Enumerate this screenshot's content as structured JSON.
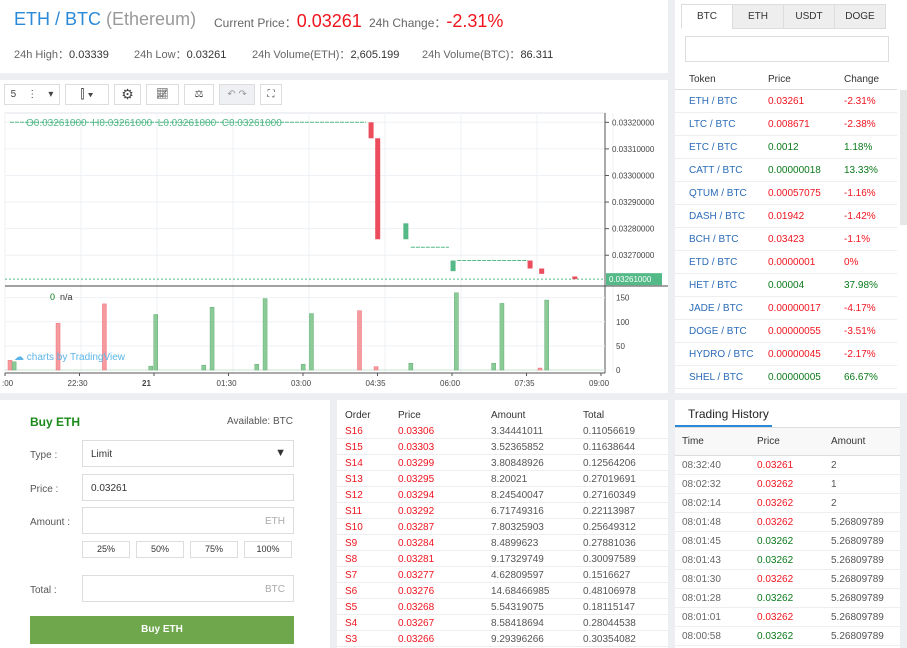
{
  "header": {
    "base": "ETH",
    "sep": " / ",
    "quote": "BTC",
    "full_name": "(Ethereum)",
    "current_price_label": "Current Price：",
    "current_price": "0.03261",
    "change_label": "24h Change：",
    "change": "-2.31%",
    "stats": [
      {
        "label": "24h High：",
        "value": "0.03339"
      },
      {
        "label": "24h Low：",
        "value": "0.03261"
      },
      {
        "label": "24h Volume(ETH)：",
        "value": "2,605.199"
      },
      {
        "label": "24h Volume(BTC)：",
        "value": "86.311"
      }
    ]
  },
  "chart": {
    "interval": "5",
    "ohlc_legend": "O0.03261000  H0.03261000  L0.03261000  C0.03261000",
    "volume_legend_value": "0",
    "volume_legend_label": "n/a",
    "watermark": "charts by TradingView",
    "price_ticks": [
      "0.03320000",
      "0.03310000",
      "0.03300000",
      "0.03290000",
      "0.03280000",
      "0.03270000"
    ],
    "current_price_tag": "0.03261000",
    "volume_ticks": [
      "150",
      "100",
      "50",
      "0"
    ],
    "time_ticks": [
      ":00",
      "22:30",
      "21",
      "01:30",
      "03:00",
      "04:35",
      "06:00",
      "07:35",
      "09:00"
    ],
    "price_range": [
      0.032588,
      0.033235
    ],
    "volume_range": [
      0,
      170
    ],
    "time_range_min": [
      0,
      710
    ],
    "candles": [
      {
        "m": 436,
        "o": 0.0332,
        "c": 0.03314
      },
      {
        "m": 444,
        "o": 0.03314,
        "c": 0.03276
      },
      {
        "m": 478,
        "o": 0.03276,
        "c": 0.03282
      },
      {
        "m": 535,
        "o": 0.03264,
        "c": 0.03268
      },
      {
        "m": 628,
        "o": 0.03268,
        "c": 0.03265
      },
      {
        "m": 642,
        "o": 0.03265,
        "c": 0.03263
      },
      {
        "m": 682,
        "o": 0.03262,
        "c": 0.03261
      }
    ],
    "flat_segments": [
      {
        "from": 0,
        "to": 430,
        "p": 0.0332
      },
      {
        "from": 484,
        "to": 530,
        "p": 0.03273
      },
      {
        "from": 540,
        "to": 625,
        "p": 0.03268
      }
    ],
    "volumes": [
      {
        "m": 0,
        "v": 20,
        "up": false
      },
      {
        "m": 5,
        "v": 17,
        "up": true
      },
      {
        "m": 58,
        "v": 97,
        "up": false
      },
      {
        "m": 114,
        "v": 137,
        "up": false
      },
      {
        "m": 170,
        "v": 8,
        "up": true
      },
      {
        "m": 176,
        "v": 115,
        "up": true
      },
      {
        "m": 234,
        "v": 10,
        "up": true
      },
      {
        "m": 244,
        "v": 130,
        "up": true
      },
      {
        "m": 298,
        "v": 12,
        "up": true
      },
      {
        "m": 308,
        "v": 148,
        "up": true
      },
      {
        "m": 354,
        "v": 12,
        "up": true
      },
      {
        "m": 364,
        "v": 117,
        "up": true
      },
      {
        "m": 422,
        "v": 123,
        "up": false
      },
      {
        "m": 442,
        "v": 7,
        "up": false
      },
      {
        "m": 484,
        "v": 14,
        "up": true
      },
      {
        "m": 539,
        "v": 160,
        "up": true
      },
      {
        "m": 584,
        "v": 14,
        "up": true
      },
      {
        "m": 594,
        "v": 138,
        "up": true
      },
      {
        "m": 640,
        "v": 4,
        "up": false
      },
      {
        "m": 648,
        "v": 145,
        "up": true
      }
    ]
  },
  "token_tabs": [
    "BTC",
    "ETH",
    "USDT",
    "DOGE"
  ],
  "token_table": {
    "headers": [
      "Token",
      "Price",
      "Change"
    ],
    "rows": [
      {
        "token": "ETH / BTC",
        "price": "0.03261",
        "change": "-2.31%",
        "up": false
      },
      {
        "token": "LTC / BTC",
        "price": "0.008671",
        "change": "-2.38%",
        "up": false
      },
      {
        "token": "ETC / BTC",
        "price": "0.0012",
        "change": "1.18%",
        "up": true
      },
      {
        "token": "CATT / BTC",
        "price": "0.00000018",
        "change": "13.33%",
        "up": true
      },
      {
        "token": "QTUM / BTC",
        "price": "0.00057075",
        "change": "-1.16%",
        "up": false
      },
      {
        "token": "DASH / BTC",
        "price": "0.01942",
        "change": "-1.42%",
        "up": false
      },
      {
        "token": "BCH / BTC",
        "price": "0.03423",
        "change": "-1.1%",
        "up": false
      },
      {
        "token": "ETD / BTC",
        "price": "0.0000001",
        "change": "0%",
        "up": false
      },
      {
        "token": "HET / BTC",
        "price": "0.00004",
        "change": "37.98%",
        "up": true
      },
      {
        "token": "JADE / BTC",
        "price": "0.00000017",
        "change": "-4.17%",
        "up": false
      },
      {
        "token": "DOGE / BTC",
        "price": "0.00000055",
        "change": "-3.51%",
        "up": false
      },
      {
        "token": "HYDRO / BTC",
        "price": "0.00000045",
        "change": "-2.17%",
        "up": false
      },
      {
        "token": "SHEL / BTC",
        "price": "0.00000005",
        "change": "66.67%",
        "up": true
      }
    ]
  },
  "buy_form": {
    "title": "Buy ETH",
    "available": "Available: BTC",
    "type_label": "Type :",
    "type_value": "Limit",
    "price_label": "Price :",
    "price_value": "0.03261",
    "amount_label": "Amount :",
    "amount_unit": "ETH",
    "percents": [
      "25%",
      "50%",
      "75%",
      "100%"
    ],
    "total_label": "Total :",
    "total_unit": "BTC",
    "submit": "Buy ETH"
  },
  "order_book": {
    "headers": [
      "Order",
      "Price",
      "Amount",
      "Total"
    ],
    "rows": [
      [
        "S16",
        "0.03306",
        "3.34441011",
        "0.11056619"
      ],
      [
        "S15",
        "0.03303",
        "3.52365852",
        "0.11638644"
      ],
      [
        "S14",
        "0.03299",
        "3.80848926",
        "0.12564206"
      ],
      [
        "S13",
        "0.03295",
        "8.20021",
        "0.27019691"
      ],
      [
        "S12",
        "0.03294",
        "8.24540047",
        "0.27160349"
      ],
      [
        "S11",
        "0.03292",
        "6.71749316",
        "0.22113987"
      ],
      [
        "S10",
        "0.03287",
        "7.80325903",
        "0.25649312"
      ],
      [
        "S9",
        "0.03284",
        "8.4899623",
        "0.27881036"
      ],
      [
        "S8",
        "0.03281",
        "9.17329749",
        "0.30097589"
      ],
      [
        "S7",
        "0.03277",
        "4.62809597",
        "0.1516627"
      ],
      [
        "S6",
        "0.03276",
        "14.68466985",
        "0.48106978"
      ],
      [
        "S5",
        "0.03268",
        "5.54319075",
        "0.18115147"
      ],
      [
        "S4",
        "0.03267",
        "8.58418694",
        "0.28044538"
      ],
      [
        "S3",
        "0.03266",
        "9.29396266",
        "0.30354082"
      ]
    ]
  },
  "history": {
    "tab": "Trading History",
    "headers": [
      "Time",
      "Price",
      "Amount"
    ],
    "rows": [
      {
        "time": "08:32:40",
        "price": "0.03261",
        "amount": "2",
        "up": false
      },
      {
        "time": "08:02:32",
        "price": "0.03262",
        "amount": "1",
        "up": false
      },
      {
        "time": "08:02:14",
        "price": "0.03262",
        "amount": "2",
        "up": false
      },
      {
        "time": "08:01:48",
        "price": "0.03262",
        "amount": "5.26809789",
        "up": false
      },
      {
        "time": "08:01:45",
        "price": "0.03262",
        "amount": "5.26809789",
        "up": true
      },
      {
        "time": "08:01:43",
        "price": "0.03262",
        "amount": "5.26809789",
        "up": true
      },
      {
        "time": "08:01:30",
        "price": "0.03262",
        "amount": "5.26809789",
        "up": false
      },
      {
        "time": "08:01:28",
        "price": "0.03262",
        "amount": "5.26809789",
        "up": true
      },
      {
        "time": "08:01:01",
        "price": "0.03262",
        "amount": "5.26809789",
        "up": false
      },
      {
        "time": "08:00:58",
        "price": "0.03262",
        "amount": "5.26809789",
        "up": true
      }
    ]
  },
  "colors": {
    "up": "#53b987",
    "down": "#eb4d5c",
    "accent": "#2b8ad8",
    "buy": "#6ea74c"
  }
}
